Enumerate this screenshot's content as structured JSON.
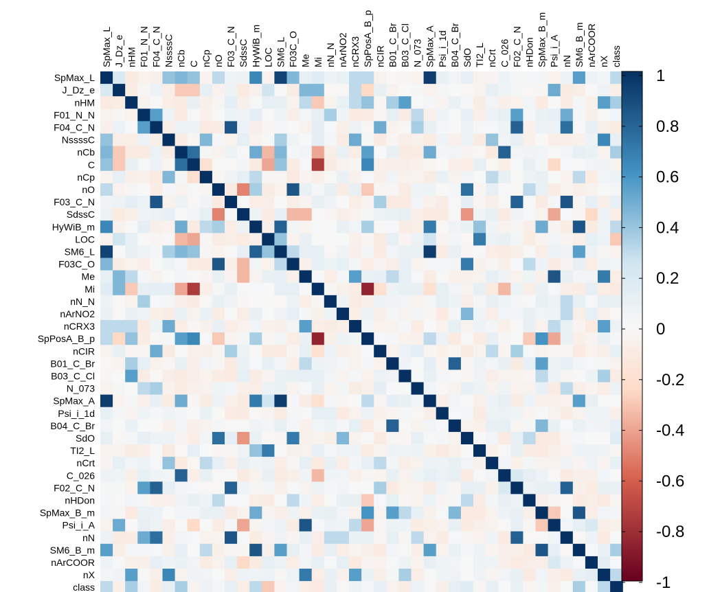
{
  "chart_data": {
    "type": "heatmap",
    "variables": [
      "SpMax_L",
      "J_Dz_e",
      "nHM",
      "F01_N_N",
      "F04_C_N",
      "NssssC",
      "nCb",
      "C",
      "nCp",
      "nO",
      "F03_C_N",
      "SdssC",
      "HyWiB_m",
      "LOC",
      "SM6_L",
      "F03C_O",
      "Me",
      "Mi",
      "nN_N",
      "nArNO2",
      "nCRX3",
      "SpPosA_B_p",
      "nCIR",
      "B01_C_Br",
      "B03_C_Cl",
      "N_073",
      "SpMax_A",
      "Psi_i_1d",
      "B04_C_Br",
      "SdO",
      "TI2_L",
      "nCrt",
      "C_026",
      "F02_C_N",
      "nHDon",
      "SpMax_B_m",
      "Psi_i_A",
      "nN",
      "SM6_B_m",
      "nArCOOR",
      "nX",
      "class"
    ],
    "correlations": [
      [
        "SpMax_L",
        "SM6_L",
        0.92
      ],
      [
        "SpMax_L",
        "SpMax_A",
        0.95
      ],
      [
        "SpMax_L",
        "HyWiB_m",
        0.65
      ],
      [
        "SpMax_L",
        "SM6_B_m",
        0.55
      ],
      [
        "SpMax_L",
        "nCb",
        0.45
      ],
      [
        "SpMax_L",
        "C",
        0.4
      ],
      [
        "SpMax_L",
        "NssssC",
        0.4
      ],
      [
        "SpMax_L",
        "F03C_O",
        0.45
      ],
      [
        "SpMax_L",
        "SpPosA_B_p",
        0.3
      ],
      [
        "SpMax_L",
        "nCRX3",
        0.3
      ],
      [
        "SpMax_L",
        "nO",
        0.3
      ],
      [
        "SpMax_L",
        "Mi",
        0.15
      ],
      [
        "SpMax_L",
        "J_Dz_e",
        0.2
      ],
      [
        "J_Dz_e",
        "Me",
        0.45
      ],
      [
        "J_Dz_e",
        "Mi",
        0.45
      ],
      [
        "J_Dz_e",
        "Psi_i_A",
        0.5
      ],
      [
        "J_Dz_e",
        "nCb",
        -0.3
      ],
      [
        "J_Dz_e",
        "C",
        -0.3
      ],
      [
        "J_Dz_e",
        "SpPosA_B_p",
        -0.25
      ],
      [
        "J_Dz_e",
        "nCRX3",
        0.3
      ],
      [
        "J_Dz_e",
        "LOC",
        0.25
      ],
      [
        "nHM",
        "Mi",
        -0.3
      ],
      [
        "nHM",
        "B03_C_Cl",
        0.55
      ],
      [
        "nHM",
        "nX",
        0.55
      ],
      [
        "nHM",
        "Me",
        0.3
      ],
      [
        "nHM",
        "nCRX3",
        0.3
      ],
      [
        "nHM",
        "SpPosA_B_p",
        0.4
      ],
      [
        "nHM",
        "B01_C_Br",
        0.35
      ],
      [
        "F01_N_N",
        "F04_C_N",
        0.55
      ],
      [
        "F01_N_N",
        "F02_C_N",
        0.55
      ],
      [
        "F01_N_N",
        "nN_N",
        0.35
      ],
      [
        "F01_N_N",
        "nN",
        0.5
      ],
      [
        "F01_N_N",
        "N_073",
        0.3
      ],
      [
        "F04_C_N",
        "F03_C_N",
        0.85
      ],
      [
        "F04_C_N",
        "F02_C_N",
        0.8
      ],
      [
        "F04_C_N",
        "nN",
        0.75
      ],
      [
        "F04_C_N",
        "nCIR",
        0.5
      ],
      [
        "F04_C_N",
        "N_073",
        0.35
      ],
      [
        "NssssC",
        "nCrt",
        0.4
      ],
      [
        "NssssC",
        "nCRX3",
        0.5
      ],
      [
        "NssssC",
        "nX",
        0.65
      ],
      [
        "NssssC",
        "nCp",
        0.45
      ],
      [
        "NssssC",
        "SM6_L",
        0.35
      ],
      [
        "nCb",
        "C",
        0.75
      ],
      [
        "nCb",
        "C_026",
        0.8
      ],
      [
        "nCb",
        "SpMax_A",
        0.5
      ],
      [
        "nCb",
        "Mi",
        -0.4
      ],
      [
        "nCb",
        "LOC",
        -0.35
      ],
      [
        "nCb",
        "SpPosA_B_p",
        0.55
      ],
      [
        "nCb",
        "HyWiB_m",
        0.5
      ],
      [
        "nCb",
        "SM6_L",
        0.45
      ],
      [
        "C",
        "Mi",
        -0.75
      ],
      [
        "C",
        "SpPosA_B_p",
        0.65
      ],
      [
        "C",
        "LOC",
        -0.4
      ],
      [
        "C",
        "SM6_L",
        0.4
      ],
      [
        "C",
        "nCp",
        -0.2
      ],
      [
        "C",
        "Psi_i_A",
        -0.25
      ],
      [
        "nCp",
        "nCrt",
        0.3
      ],
      [
        "nCp",
        "HyWiB_m",
        0.3
      ],
      [
        "nCp",
        "SM6_B_m",
        0.3
      ],
      [
        "nO",
        "F03C_O",
        0.85
      ],
      [
        "nO",
        "SdO",
        0.75
      ],
      [
        "nO",
        "SdssC",
        -0.5
      ],
      [
        "nO",
        "SpPosA_B_p",
        -0.3
      ],
      [
        "nO",
        "nHDon",
        0.3
      ],
      [
        "nO",
        "HyWiB_m",
        0.35
      ],
      [
        "F03_C_N",
        "F02_C_N",
        0.8
      ],
      [
        "F03_C_N",
        "nN",
        0.85
      ],
      [
        "F03_C_N",
        "nCIR",
        0.35
      ],
      [
        "SdssC",
        "F03C_O",
        -0.35
      ],
      [
        "SdssC",
        "SdO",
        -0.45
      ],
      [
        "SdssC",
        "Me",
        -0.35
      ],
      [
        "SdssC",
        "Psi_i_A",
        -0.4
      ],
      [
        "SdssC",
        "nArCOOR",
        -0.25
      ],
      [
        "HyWiB_m",
        "SM6_L",
        0.8
      ],
      [
        "HyWiB_m",
        "SM6_B_m",
        0.85
      ],
      [
        "HyWiB_m",
        "SpMax_A",
        0.7
      ],
      [
        "HyWiB_m",
        "SpMax_B_m",
        0.5
      ],
      [
        "HyWiB_m",
        "TI2_L",
        0.4
      ],
      [
        "HyWiB_m",
        "SpPosA_B_p",
        0.35
      ],
      [
        "LOC",
        "TI2_L",
        0.7
      ],
      [
        "LOC",
        "SM6_L",
        0.4
      ],
      [
        "LOC",
        "SpMax_A",
        0.25
      ],
      [
        "SM6_L",
        "SpMax_A",
        0.95
      ],
      [
        "SM6_L",
        "SM6_B_m",
        0.55
      ],
      [
        "SM6_L",
        "F03C_O",
        0.3
      ],
      [
        "F03C_O",
        "SdO",
        0.7
      ],
      [
        "F03C_O",
        "nHDon",
        0.3
      ],
      [
        "Me",
        "Psi_i_A",
        0.85
      ],
      [
        "Me",
        "nX",
        0.7
      ],
      [
        "Me",
        "nCRX3",
        0.55
      ],
      [
        "Me",
        "B01_C_Br",
        0.3
      ],
      [
        "Mi",
        "SpPosA_B_p",
        -0.85
      ],
      [
        "Mi",
        "nCIR",
        -0.2
      ],
      [
        "Mi",
        "C_026",
        -0.35
      ],
      [
        "Mi",
        "SpMax_A",
        -0.2
      ],
      [
        "nN_N",
        "nN",
        0.3
      ],
      [
        "nArNO2",
        "SdO",
        0.45
      ],
      [
        "nArNO2",
        "nN",
        0.3
      ],
      [
        "nCRX3",
        "nX",
        0.55
      ],
      [
        "nCRX3",
        "Psi_i_A",
        0.3
      ],
      [
        "SpPosA_B_p",
        "SpMax_B_m",
        0.6
      ],
      [
        "SpPosA_B_p",
        "nHDon",
        -0.3
      ],
      [
        "SpPosA_B_p",
        "Psi_i_A",
        -0.4
      ],
      [
        "SpPosA_B_p",
        "SpMax_A",
        0.3
      ],
      [
        "nCIR",
        "F02_C_N",
        0.35
      ],
      [
        "nCIR",
        "nCrt",
        0.3
      ],
      [
        "B01_C_Br",
        "B04_C_Br",
        0.8
      ],
      [
        "B01_C_Br",
        "SpMax_B_m",
        0.55
      ],
      [
        "B03_C_Cl",
        "SpMax_B_m",
        0.3
      ],
      [
        "B03_C_Cl",
        "nX",
        0.35
      ],
      [
        "N_073",
        "nN",
        0.3
      ],
      [
        "SpMax_A",
        "SM6_B_m",
        0.55
      ],
      [
        "B04_C_Br",
        "SpMax_B_m",
        0.45
      ],
      [
        "SdO",
        "nHDon",
        0.3
      ],
      [
        "C_026",
        "F02_C_N",
        0.2
      ],
      [
        "F02_C_N",
        "nN",
        0.8
      ],
      [
        "SpMax_B_m",
        "SM6_B_m",
        0.85
      ],
      [
        "SpMax_B_m",
        "Psi_i_A",
        -0.3
      ],
      [
        "nArCOOR",
        "Psi_i_A",
        0.2
      ],
      [
        "nX",
        "class",
        0.3
      ],
      [
        "SdO",
        "class",
        0.15
      ],
      [
        "LOC",
        "class",
        -0.3
      ],
      [
        "nCb",
        "class",
        0.35
      ],
      [
        "SM6_B_m",
        "class",
        0.35
      ],
      [
        "HyWiB_m",
        "class",
        0.3
      ],
      [
        "SpMax_L",
        "class",
        0.3
      ],
      [
        "nHM",
        "class",
        0.35
      ]
    ],
    "colorbar": {
      "range": [
        -1,
        1
      ],
      "ticks": [
        "1",
        "0.8",
        "0.6",
        "0.4",
        "0.2",
        "0",
        "-0.2",
        "-0.4",
        "-0.6",
        "-0.8",
        "-1"
      ]
    },
    "colors": {
      "negative_end": "#67001F",
      "neg_mid": "#D6604D",
      "neg_light": "#FDDBC7",
      "zero": "#F7F7F7",
      "pos_light": "#D1E5F0",
      "pos_mid": "#4393C3",
      "positive_end": "#053061"
    }
  }
}
